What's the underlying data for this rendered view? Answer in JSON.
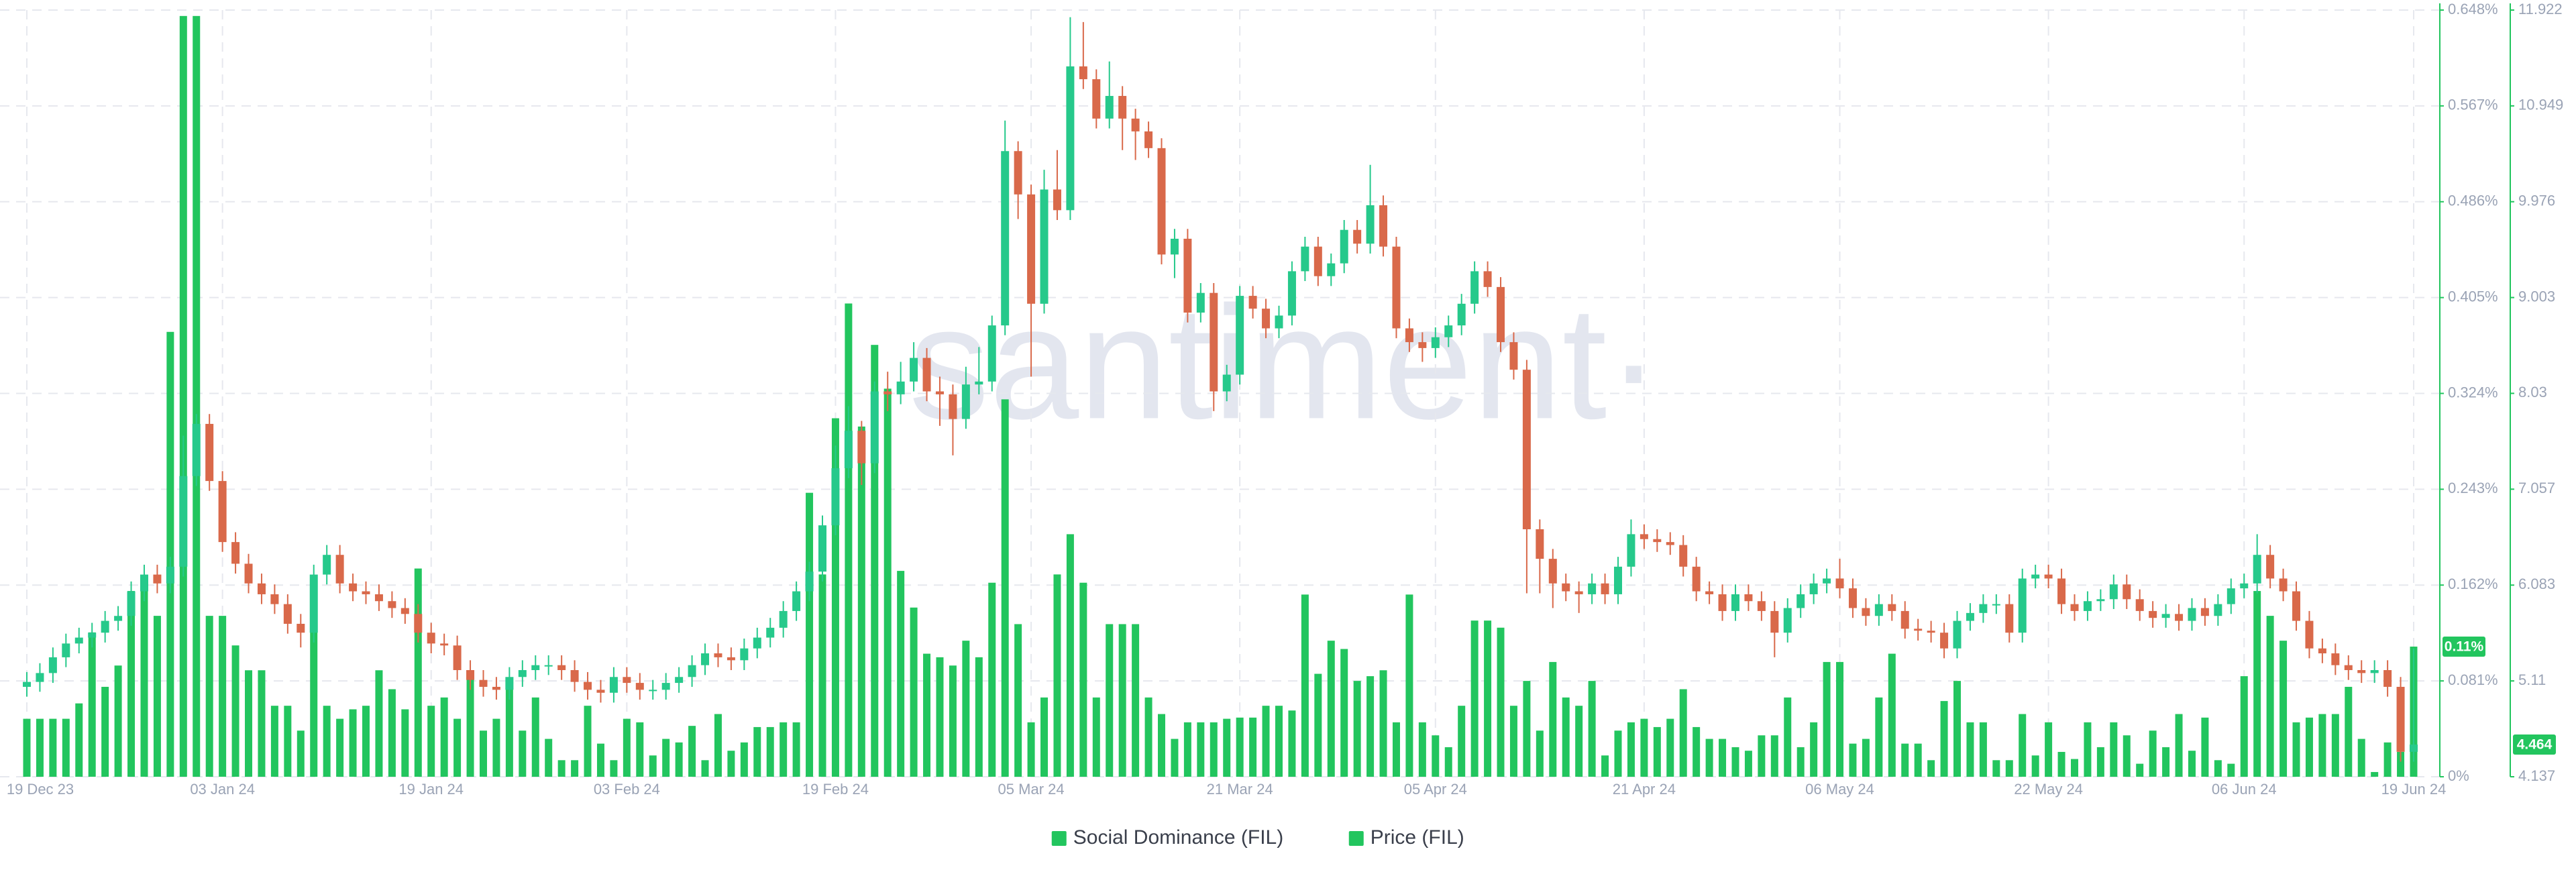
{
  "chart_data": {
    "type": "combo",
    "watermark": "santiment·",
    "categories": [
      "19 Dec 23",
      null,
      null,
      null,
      null,
      null,
      null,
      null,
      null,
      null,
      null,
      null,
      null,
      null,
      null,
      "03 Jan 24",
      null,
      null,
      null,
      null,
      null,
      null,
      null,
      null,
      null,
      null,
      null,
      null,
      null,
      null,
      null,
      "19 Jan 24",
      null,
      null,
      null,
      null,
      null,
      null,
      null,
      null,
      null,
      null,
      null,
      null,
      null,
      null,
      "03 Feb 24",
      null,
      null,
      null,
      null,
      null,
      null,
      null,
      null,
      null,
      null,
      null,
      null,
      null,
      null,
      null,
      "19 Feb 24",
      null,
      null,
      null,
      null,
      null,
      null,
      null,
      null,
      null,
      null,
      null,
      null,
      null,
      null,
      "05 Mar 24",
      null,
      null,
      null,
      null,
      null,
      null,
      null,
      null,
      null,
      null,
      null,
      null,
      null,
      null,
      null,
      "21 Mar 24",
      null,
      null,
      null,
      null,
      null,
      null,
      null,
      null,
      null,
      null,
      null,
      null,
      null,
      null,
      "05 Apr 24",
      null,
      null,
      null,
      null,
      null,
      null,
      null,
      null,
      null,
      null,
      null,
      null,
      null,
      null,
      null,
      "21 Apr 24",
      null,
      null,
      null,
      null,
      null,
      null,
      null,
      null,
      null,
      null,
      null,
      null,
      null,
      null,
      "06 May 24",
      null,
      null,
      null,
      null,
      null,
      null,
      null,
      null,
      null,
      null,
      null,
      null,
      null,
      null,
      null,
      "22 May 24",
      null,
      null,
      null,
      null,
      null,
      null,
      null,
      null,
      null,
      null,
      null,
      null,
      null,
      null,
      "06 Jun 24",
      null,
      null,
      null,
      null,
      null,
      null,
      null,
      null,
      null,
      null,
      null,
      null,
      "19 Jun 24"
    ],
    "series": [
      {
        "name": "Social Dominance (FIL)",
        "type": "bar",
        "color": "#22c55e",
        "values": [
          0.049,
          0.049,
          0.049,
          0.049,
          0.062,
          0.122,
          0.076,
          0.094,
          0.157,
          0.168,
          0.136,
          0.376,
          0.643,
          0.643,
          0.136,
          0.136,
          0.111,
          0.09,
          0.09,
          0.06,
          0.06,
          0.039,
          0.122,
          0.06,
          0.049,
          0.057,
          0.06,
          0.09,
          0.074,
          0.057,
          0.176,
          0.06,
          0.067,
          0.049,
          0.087,
          0.039,
          0.049,
          0.081,
          0.039,
          0.067,
          0.032,
          0.014,
          0.014,
          0.06,
          0.028,
          0.014,
          0.049,
          0.046,
          0.018,
          0.032,
          0.029,
          0.043,
          0.014,
          0.053,
          0.022,
          0.029,
          0.042,
          0.042,
          0.046,
          0.046,
          0.24,
          0.171,
          0.303,
          0.4,
          0.296,
          0.365,
          0.328,
          0.174,
          0.143,
          0.104,
          0.101,
          0.094,
          0.115,
          0.101,
          0.164,
          0.319,
          0.129,
          0.046,
          0.067,
          0.171,
          0.205,
          0.164,
          0.067,
          0.129,
          0.129,
          0.129,
          0.067,
          0.053,
          0.032,
          0.046,
          0.046,
          0.046,
          0.049,
          0.05,
          0.05,
          0.06,
          0.06,
          0.056,
          0.154,
          0.087,
          0.115,
          0.108,
          0.081,
          0.085,
          0.09,
          0.046,
          0.154,
          0.046,
          0.035,
          0.025,
          0.06,
          0.132,
          0.132,
          0.126,
          0.06,
          0.081,
          0.039,
          0.097,
          0.067,
          0.06,
          0.081,
          0.018,
          0.039,
          0.046,
          0.049,
          0.042,
          0.049,
          0.074,
          0.042,
          0.032,
          0.032,
          0.025,
          0.022,
          0.035,
          0.035,
          0.067,
          0.025,
          0.046,
          0.097,
          0.097,
          0.028,
          0.032,
          0.067,
          0.104,
          0.028,
          0.028,
          0.014,
          0.064,
          0.081,
          0.046,
          0.046,
          0.014,
          0.014,
          0.053,
          0.018,
          0.046,
          0.021,
          0.015,
          0.046,
          0.025,
          0.046,
          0.035,
          0.011,
          0.039,
          0.025,
          0.053,
          0.022,
          0.05,
          0.014,
          0.011,
          0.085,
          0.157,
          0.136,
          0.115,
          0.046,
          0.05,
          0.053,
          0.053,
          0.076,
          0.032,
          0.004,
          0.029,
          0.021,
          0.11
        ]
      },
      {
        "name": "Price (FIL)",
        "type": "candlestick",
        "axis": "y2",
        "color": "#22c55e",
        "up_color": "#26c98b",
        "down_color": "#d9694a",
        "open": [
          5.05,
          5.1,
          5.19,
          5.35,
          5.49,
          5.55,
          5.6,
          5.72,
          5.77,
          6.02,
          6.19,
          6.1,
          6.27,
          7.19,
          7.72,
          7.14,
          6.52,
          6.3,
          6.1,
          5.99,
          5.89,
          5.69,
          5.6,
          6.19,
          6.39,
          6.1,
          6.02,
          5.99,
          5.92,
          5.85,
          5.79,
          5.6,
          5.49,
          5.47,
          5.22,
          5.12,
          5.05,
          5.02,
          5.15,
          5.22,
          5.27,
          5.27,
          5.22,
          5.1,
          5.02,
          4.99,
          5.15,
          5.09,
          5.02,
          5.02,
          5.09,
          5.15,
          5.27,
          5.39,
          5.35,
          5.32,
          5.44,
          5.55,
          5.65,
          5.82,
          6.02,
          6.22,
          6.69,
          7.27,
          7.65,
          7.32,
          8.05,
          8.02,
          8.15,
          8.39,
          8.05,
          8.02,
          7.77,
          8.12,
          8.15,
          8.72,
          10.49,
          10.05,
          8.94,
          10.1,
          9.89,
          11.35,
          11.22,
          10.82,
          11.05,
          10.82,
          10.69,
          10.52,
          9.44,
          9.6,
          8.85,
          9.05,
          8.05,
          8.22,
          9.02,
          8.89,
          8.69,
          8.82,
          9.27,
          9.52,
          9.22,
          9.35,
          9.69,
          9.55,
          9.94,
          9.52,
          8.69,
          8.55,
          8.49,
          8.6,
          8.72,
          8.94,
          9.27,
          9.11,
          8.55,
          8.27,
          6.65,
          6.35,
          6.1,
          6.02,
          5.99,
          6.1,
          5.99,
          6.27,
          6.6,
          6.55,
          6.52,
          6.49,
          6.27,
          6.02,
          5.99,
          5.82,
          5.99,
          5.92,
          5.82,
          5.6,
          5.85,
          5.99,
          6.1,
          6.15,
          6.05,
          5.85,
          5.77,
          5.89,
          5.82,
          5.64,
          5.62,
          5.6,
          5.44,
          5.72,
          5.8,
          5.89,
          5.89,
          5.6,
          6.15,
          6.19,
          6.15,
          5.89,
          5.82,
          5.92,
          5.94,
          6.09,
          5.94,
          5.82,
          5.75,
          5.79,
          5.72,
          5.85,
          5.77,
          5.89,
          6.05,
          6.1,
          6.39,
          6.15,
          6.02,
          5.72,
          5.44,
          5.39,
          5.27,
          5.22,
          5.19,
          5.22,
          5.05,
          4.39
        ],
        "high": [
          5.2,
          5.29,
          5.45,
          5.59,
          5.65,
          5.7,
          5.82,
          5.87,
          6.12,
          6.29,
          6.29,
          6.37,
          7.6,
          7.82,
          7.82,
          7.24,
          6.62,
          6.4,
          6.2,
          6.09,
          5.99,
          5.79,
          6.29,
          6.49,
          6.49,
          6.2,
          6.12,
          6.09,
          6.02,
          5.95,
          5.89,
          5.7,
          5.59,
          5.57,
          5.32,
          5.22,
          5.15,
          5.25,
          5.32,
          5.37,
          5.37,
          5.37,
          5.32,
          5.2,
          5.12,
          5.25,
          5.25,
          5.19,
          5.12,
          5.19,
          5.25,
          5.37,
          5.49,
          5.49,
          5.45,
          5.54,
          5.65,
          5.75,
          5.92,
          6.12,
          6.32,
          6.79,
          7.5,
          7.9,
          7.75,
          8.15,
          8.25,
          8.35,
          8.55,
          8.49,
          8.2,
          8.12,
          8.3,
          8.5,
          8.82,
          10.8,
          10.59,
          10.15,
          10.3,
          10.5,
          11.85,
          11.8,
          11.32,
          11.4,
          11.15,
          10.92,
          10.79,
          10.62,
          9.7,
          9.7,
          9.15,
          9.15,
          8.32,
          9.12,
          9.12,
          8.99,
          8.92,
          9.37,
          9.62,
          9.62,
          9.45,
          9.79,
          9.79,
          10.35,
          10.04,
          9.62,
          8.79,
          8.65,
          8.7,
          8.82,
          9.04,
          9.37,
          9.37,
          9.21,
          8.65,
          8.37,
          6.75,
          6.45,
          6.2,
          6.12,
          6.2,
          6.2,
          6.37,
          6.75,
          6.7,
          6.65,
          6.62,
          6.59,
          6.37,
          6.12,
          6.09,
          6.09,
          6.09,
          6.02,
          5.92,
          5.95,
          6.09,
          6.2,
          6.25,
          6.35,
          6.15,
          5.95,
          5.99,
          5.99,
          5.92,
          5.74,
          5.72,
          5.7,
          5.82,
          5.9,
          5.99,
          5.99,
          5.99,
          6.25,
          6.29,
          6.29,
          6.25,
          5.99,
          6.02,
          6.04,
          6.19,
          6.19,
          6.04,
          5.92,
          5.89,
          5.89,
          5.95,
          5.95,
          5.99,
          6.15,
          6.2,
          6.6,
          6.49,
          6.25,
          6.12,
          5.82,
          5.54,
          5.49,
          5.37,
          5.32,
          5.32,
          5.32,
          5.15,
          5.44
        ],
        "low": [
          4.95,
          5.0,
          5.09,
          5.25,
          5.39,
          5.45,
          5.5,
          5.62,
          5.67,
          5.92,
          6.0,
          6.0,
          6.17,
          7.09,
          7.04,
          6.42,
          6.2,
          6.0,
          5.89,
          5.79,
          5.59,
          5.45,
          5.5,
          6.09,
          6.0,
          5.92,
          5.89,
          5.82,
          5.75,
          5.69,
          5.5,
          5.39,
          5.37,
          5.12,
          5.02,
          4.95,
          4.92,
          4.92,
          5.05,
          5.12,
          5.17,
          5.12,
          5.0,
          4.92,
          4.89,
          4.89,
          4.99,
          4.92,
          4.92,
          4.92,
          4.99,
          5.05,
          5.17,
          5.25,
          5.22,
          5.22,
          5.34,
          5.45,
          5.55,
          5.72,
          5.92,
          6.12,
          6.59,
          7.17,
          7.1,
          7.22,
          7.85,
          7.92,
          8.05,
          7.95,
          7.7,
          7.4,
          7.67,
          8.02,
          8.05,
          8.62,
          9.8,
          8.2,
          8.84,
          9.79,
          9.79,
          11.12,
          10.72,
          10.72,
          10.5,
          10.4,
          10.42,
          9.34,
          9.2,
          8.75,
          8.75,
          7.85,
          7.95,
          8.12,
          8.79,
          8.59,
          8.59,
          8.72,
          9.17,
          9.12,
          9.12,
          9.25,
          9.45,
          9.45,
          9.42,
          8.59,
          8.45,
          8.35,
          8.39,
          8.5,
          8.62,
          8.84,
          9.01,
          8.45,
          8.17,
          6.0,
          6.0,
          5.85,
          5.92,
          5.8,
          5.89,
          5.89,
          5.89,
          6.17,
          6.45,
          6.42,
          6.39,
          6.17,
          5.92,
          5.89,
          5.72,
          5.72,
          5.82,
          5.72,
          5.35,
          5.5,
          5.75,
          5.89,
          6.0,
          5.95,
          5.75,
          5.67,
          5.67,
          5.72,
          5.54,
          5.52,
          5.5,
          5.34,
          5.34,
          5.62,
          5.7,
          5.79,
          5.5,
          5.5,
          6.05,
          6.05,
          5.79,
          5.72,
          5.72,
          5.82,
          5.84,
          5.84,
          5.72,
          5.65,
          5.65,
          5.62,
          5.62,
          5.67,
          5.67,
          5.79,
          5.95,
          6.0,
          6.05,
          5.92,
          5.62,
          5.34,
          5.29,
          5.17,
          5.12,
          5.09,
          5.09,
          4.95,
          4.29,
          4.29
        ],
        "close": [
          5.1,
          5.19,
          5.35,
          5.49,
          5.55,
          5.6,
          5.72,
          5.77,
          6.02,
          6.19,
          6.1,
          6.27,
          7.19,
          7.72,
          7.14,
          6.52,
          6.3,
          6.1,
          5.99,
          5.89,
          5.69,
          5.6,
          6.19,
          6.39,
          6.1,
          6.02,
          5.99,
          5.92,
          5.85,
          5.79,
          5.6,
          5.49,
          5.47,
          5.22,
          5.12,
          5.05,
          5.02,
          5.15,
          5.22,
          5.27,
          5.27,
          5.22,
          5.1,
          5.02,
          4.99,
          5.15,
          5.09,
          5.02,
          5.02,
          5.09,
          5.15,
          5.27,
          5.39,
          5.35,
          5.32,
          5.44,
          5.55,
          5.65,
          5.82,
          6.02,
          6.22,
          6.69,
          7.27,
          7.65,
          7.32,
          8.05,
          8.02,
          8.15,
          8.39,
          8.05,
          8.02,
          7.77,
          8.12,
          8.15,
          8.72,
          10.49,
          10.05,
          8.94,
          10.1,
          9.89,
          11.35,
          11.22,
          10.82,
          11.05,
          10.82,
          10.69,
          10.52,
          9.44,
          9.6,
          8.85,
          9.05,
          8.05,
          8.22,
          9.02,
          8.89,
          8.69,
          8.82,
          9.27,
          9.52,
          9.22,
          9.35,
          9.69,
          9.55,
          9.94,
          9.52,
          8.69,
          8.55,
          8.49,
          8.6,
          8.72,
          8.94,
          9.27,
          9.11,
          8.55,
          8.27,
          6.65,
          6.35,
          6.1,
          6.02,
          5.99,
          6.1,
          5.99,
          6.27,
          6.6,
          6.55,
          6.52,
          6.49,
          6.27,
          6.02,
          5.99,
          5.82,
          5.99,
          5.92,
          5.82,
          5.6,
          5.85,
          5.99,
          6.1,
          6.15,
          6.05,
          5.85,
          5.77,
          5.89,
          5.82,
          5.64,
          5.62,
          5.6,
          5.44,
          5.72,
          5.8,
          5.89,
          5.89,
          5.6,
          6.15,
          6.19,
          6.15,
          5.89,
          5.82,
          5.92,
          5.94,
          6.09,
          5.94,
          5.82,
          5.75,
          5.79,
          5.72,
          5.85,
          5.77,
          5.89,
          6.05,
          6.1,
          6.39,
          6.15,
          6.02,
          5.72,
          5.44,
          5.39,
          5.27,
          5.22,
          5.19,
          5.22,
          5.05,
          4.39,
          4.464
        ]
      }
    ],
    "ylim": [
      0,
      0.648
    ],
    "yticks": [
      {
        "value": 0,
        "label": "0%"
      },
      {
        "value": 0.081,
        "label": "0.081%"
      },
      {
        "value": 0.162,
        "label": "0.162%"
      },
      {
        "value": 0.243,
        "label": "0.243%"
      },
      {
        "value": 0.324,
        "label": "0.324%"
      },
      {
        "value": 0.405,
        "label": "0.405%"
      },
      {
        "value": 0.486,
        "label": "0.486%"
      },
      {
        "value": 0.567,
        "label": "0.567%"
      },
      {
        "value": 0.648,
        "label": "0.648%"
      }
    ],
    "y2lim": [
      4.137,
      11.922
    ],
    "y2ticks": [
      4.137,
      5.11,
      6.083,
      7.057,
      8.03,
      9.003,
      9.976,
      10.949,
      11.922
    ],
    "value_badges": [
      {
        "value": 0.11,
        "label": "0.11%",
        "axis": "y"
      },
      {
        "value": 4.464,
        "label": "4.464",
        "axis": "y2"
      }
    ],
    "grid": true,
    "legend": "bottom"
  }
}
